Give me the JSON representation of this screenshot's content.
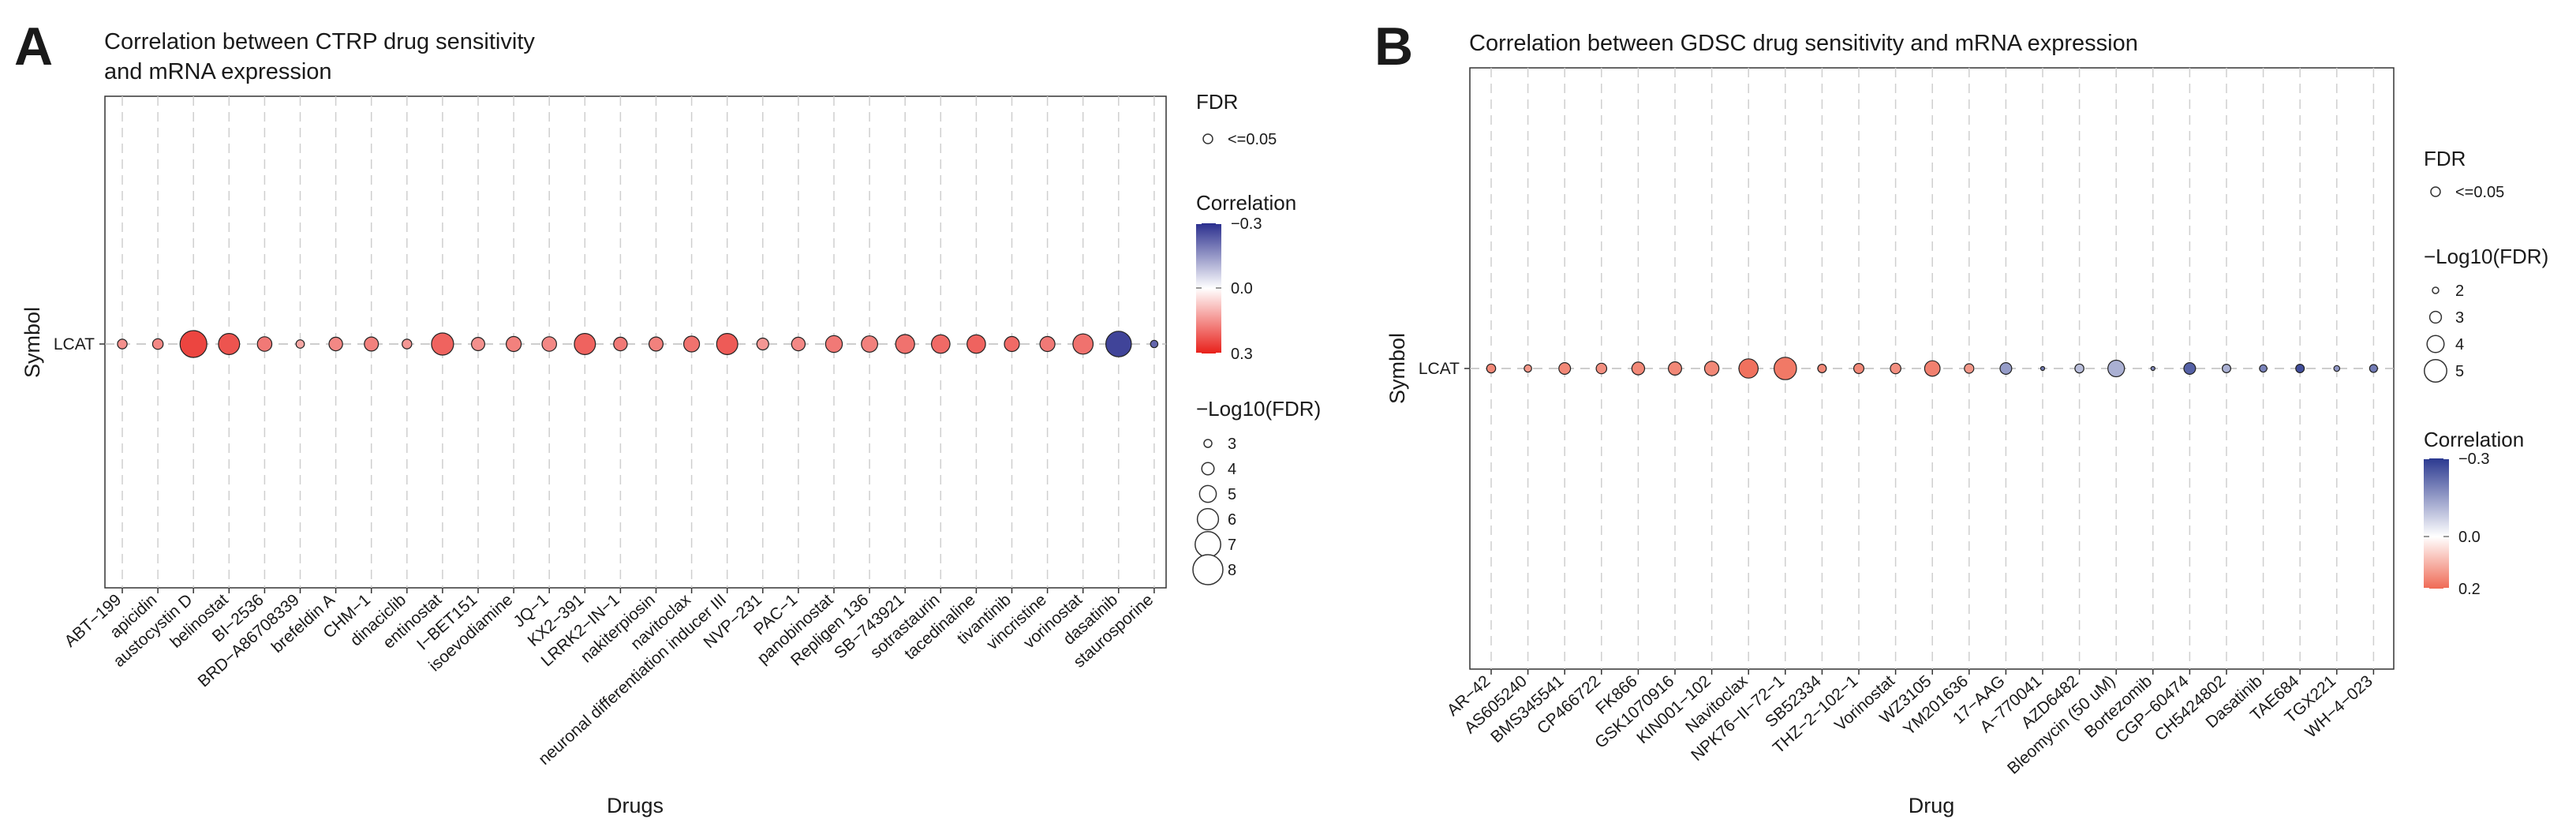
{
  "figure": {
    "panels": [
      {
        "letter": "A",
        "title_lines": [
          "Correlation between CTRP drug sensitivity",
          "and mRNA expression"
        ],
        "legend": {
          "fdr_title": "FDR",
          "fdr_label": "<=0.05",
          "corr_title": "Correlation",
          "corr_labels": [
            "−0.3",
            "0.0",
            "0.3"
          ],
          "logfdr_title": "−Log10(FDR)",
          "logfdr_values": [
            3,
            4,
            5,
            6,
            7,
            8
          ],
          "legend_order": [
            "fdr",
            "corr",
            "logfdr"
          ]
        }
      },
      {
        "letter": "B",
        "title_lines": [
          "Correlation between GDSC drug sensitivity and mRNA expression"
        ],
        "legend": {
          "fdr_title": "FDR",
          "fdr_label": "<=0.05",
          "logfdr_title": "−Log10(FDR)",
          "logfdr_values": [
            2,
            3,
            4,
            5
          ],
          "corr_title": "Correlation",
          "corr_labels": [
            "−0.3",
            "0.0",
            "0.2"
          ],
          "legend_order": [
            "fdr",
            "logfdr",
            "corr"
          ]
        }
      }
    ]
  },
  "chart_data": [
    {
      "type": "scatter",
      "title": "Correlation between CTRP drug sensitivity and mRNA expression",
      "xlabel": "Drugs",
      "ylabel": "Symbol",
      "y_categories": [
        "LCAT"
      ],
      "size_variable": "−Log10(FDR)",
      "color_variable": "Correlation",
      "color_range": [
        -0.3,
        0.3
      ],
      "colors": {
        "negative": "#2b2f8e",
        "zero": "#ffffff",
        "positive": "#e8201a"
      },
      "categories": [
        "ABT−199",
        "apicidin",
        "austocystin D",
        "belinostat",
        "BI−2536",
        "BRD−A86708339",
        "brefeldin A",
        "CHM−1",
        "dinaciclib",
        "entinostat",
        "I−BET151",
        "isoevodiamine",
        "JQ−1",
        "KX2−391",
        "LRRK2−IN−1",
        "nakiterpiosin",
        "navitoclax",
        "neuronal differentiation inducer III",
        "NVP−231",
        "PAC−1",
        "panobinostat",
        "Repligen 136",
        "SB−743921",
        "sotrastaurin",
        "tacedinaline",
        "tivantinib",
        "vincristine",
        "vorinostat",
        "dasatinib",
        "staurosporine"
      ],
      "correlation": [
        0.15,
        0.16,
        0.25,
        0.23,
        0.18,
        0.12,
        0.16,
        0.17,
        0.14,
        0.21,
        0.15,
        0.17,
        0.16,
        0.21,
        0.18,
        0.17,
        0.19,
        0.22,
        0.14,
        0.16,
        0.18,
        0.17,
        0.19,
        0.2,
        0.21,
        0.2,
        0.18,
        0.19,
        -0.27,
        -0.22
      ],
      "neg_log10_fdr": [
        3.4,
        3.6,
        7.3,
        6.0,
        4.5,
        3.1,
        4.3,
        4.4,
        3.4,
        6.2,
        4.2,
        4.6,
        4.5,
        6.0,
        4.3,
        4.4,
        4.8,
        6.0,
        3.9,
        4.3,
        5.0,
        4.9,
        5.5,
        5.4,
        5.4,
        4.6,
        4.6,
        5.8,
        7.0,
        2.9
      ]
    },
    {
      "type": "scatter",
      "title": "Correlation between GDSC drug sensitivity and mRNA expression",
      "xlabel": "Drug",
      "ylabel": "Symbol",
      "y_categories": [
        "LCAT"
      ],
      "size_variable": "−Log10(FDR)",
      "color_variable": "Correlation",
      "color_range": [
        -0.3,
        0.2
      ],
      "colors": {
        "negative": "#2b3990",
        "zero": "#ffffff",
        "positive": "#ef6a55"
      },
      "categories": [
        "AR−42",
        "AS605240",
        "BMS345541",
        "CP466722",
        "FK866",
        "GSK1070916",
        "KIN001−102",
        "Navitoclax",
        "NPK76−II−72−1",
        "SB52334",
        "THZ−2−102−1",
        "Vorinostat",
        "WZ3105",
        "YM201636",
        "17−AAG",
        "A−770041",
        "AZD6482",
        "Bleomycin (50 uM)",
        "Bortezomib",
        "CGP−60474",
        "CH5424802",
        "Dasatinib",
        "TAE684",
        "TGX221",
        "WH−4−023"
      ],
      "correlation": [
        0.16,
        0.14,
        0.16,
        0.15,
        0.16,
        0.16,
        0.16,
        0.19,
        0.18,
        0.16,
        0.16,
        0.15,
        0.17,
        0.14,
        -0.15,
        -0.2,
        -0.1,
        -0.12,
        -0.18,
        -0.24,
        -0.12,
        -0.19,
        -0.27,
        -0.16,
        -0.2
      ],
      "neg_log10_fdr": [
        2.5,
        2.2,
        3.0,
        2.8,
        3.2,
        3.3,
        3.5,
        4.4,
        5.0,
        2.4,
        2.7,
        2.8,
        3.7,
        2.6,
        3.0,
        1.5,
        2.5,
        3.9,
        0.9,
        3.0,
        2.4,
        2.2,
        2.4,
        1.9,
        2.3
      ]
    }
  ]
}
